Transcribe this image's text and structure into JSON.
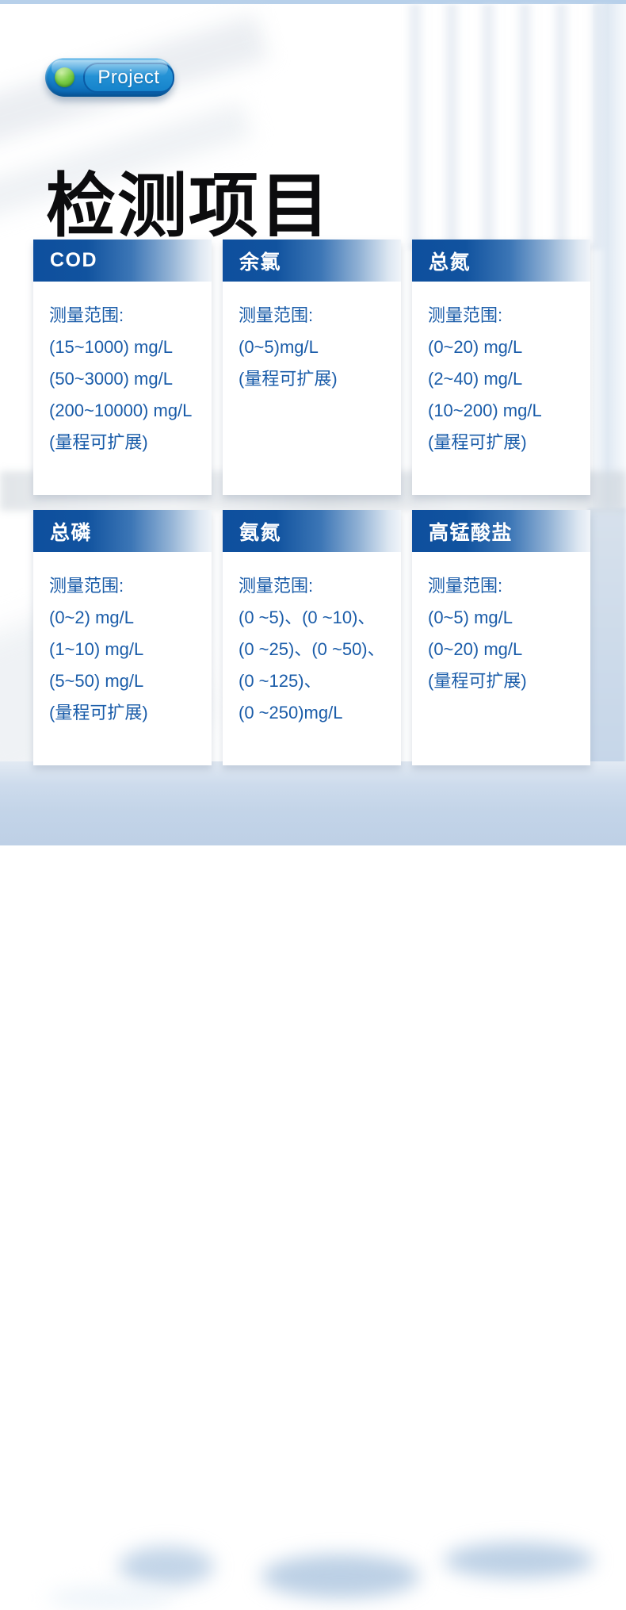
{
  "badge": {
    "label": "Project"
  },
  "heading": {
    "title": "检测项目"
  },
  "cards": [
    {
      "title": "COD",
      "lines": [
        "测量范围:",
        "(15~1000) mg/L",
        "(50~3000) mg/L",
        "(200~10000) mg/L",
        "(量程可扩展)"
      ]
    },
    {
      "title": "余氯",
      "lines": [
        "测量范围:",
        "(0~5)mg/L",
        "(量程可扩展)"
      ]
    },
    {
      "title": "总氮",
      "lines": [
        "测量范围:",
        "(0~20) mg/L",
        "(2~40) mg/L",
        "(10~200) mg/L",
        "(量程可扩展)"
      ]
    },
    {
      "title": "总磷",
      "lines": [
        "测量范围:",
        "(0~2) mg/L",
        "(1~10) mg/L",
        "(5~50) mg/L",
        "(量程可扩展)"
      ]
    },
    {
      "title": "氨氮",
      "lines": [
        "测量范围:",
        "(0 ~5)、(0 ~10)、",
        "(0 ~25)、(0 ~50)、",
        "(0 ~125)、",
        "(0 ~250)mg/L"
      ]
    },
    {
      "title": "高锰酸盐",
      "lines": [
        "测量范围:",
        "(0~5) mg/L",
        "(0~20) mg/L",
        "(量程可扩展)"
      ]
    }
  ],
  "colors": {
    "card_header_gradient_start": "#0e4f9e",
    "card_header_gradient_end": "#f0f4f9",
    "card_body_text": "#1a5ca9",
    "heading_text": "#0c0c0e",
    "badge_blue": "#1e8cd2",
    "badge_dot_green": "#79cc45",
    "top_strip": "#b7d0ea",
    "bottom_background": "#c3d4e8"
  }
}
